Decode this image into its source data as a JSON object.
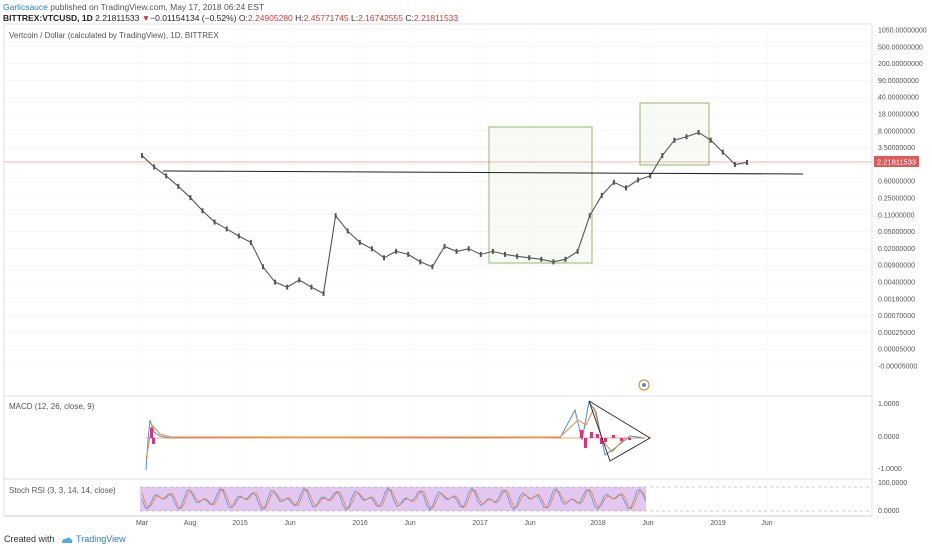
{
  "header": {
    "author": "Garlicsauce",
    "published": "published on TradingView.com, May 17, 2018 06:24 EST",
    "symbol": "BITTREX:VTCUSD, 1D",
    "last": "2.21811533",
    "change_arrow": "▼",
    "change": "−0.01154134 (−0.52%)",
    "open_label": "O:",
    "open": "2.24905280",
    "high_label": "H:",
    "high": "2.45771745",
    "low_label": "L:",
    "low": "2.16742555",
    "close_label": "C:",
    "close": "2.21811533"
  },
  "chart_data": [
    {
      "type": "line",
      "title": "Vertcoin / Dollar (calculated by TradingView), 1D, BITTREX",
      "scale": "log",
      "y_ticks": [
        "1050.00000000",
        "500.00000000",
        "200.00000000",
        "90.00000000",
        "40.00000000",
        "18.00000000",
        "8.00000000",
        "3.50000000",
        "1.50000000",
        "0.60000000",
        "0.25000000",
        "0.11000000",
        "0.05000000",
        "0.02000000",
        "0.00900000",
        "0.00400000",
        "0.00180000",
        "0.00070000",
        "0.00025000",
        "0.00005000",
        "-0.00005000"
      ],
      "x_ticks": [
        "Mar",
        "Aug",
        "2015",
        "Jun",
        "2016",
        "Jun",
        "2017",
        "Jun",
        "2018",
        "Jun",
        "2019",
        "Jun"
      ],
      "last_price_label": "2.21811533",
      "series": [
        {
          "x": [
            "2014-03",
            "2014-04",
            "2014-05",
            "2014-06",
            "2014-07",
            "2014-08",
            "2014-09",
            "2014-10",
            "2014-11",
            "2014-12",
            "2015-01",
            "2015-02",
            "2015-03",
            "2015-04",
            "2015-05",
            "2015-06",
            "2015-07",
            "2015-08",
            "2015-09",
            "2015-10",
            "2015-11",
            "2015-12",
            "2016-01",
            "2016-02",
            "2016-03",
            "2016-04",
            "2016-05",
            "2016-06",
            "2016-07",
            "2016-08",
            "2016-09",
            "2016-10",
            "2016-11",
            "2016-12",
            "2017-01",
            "2017-02",
            "2017-03",
            "2017-04",
            "2017-05",
            "2017-06",
            "2017-07",
            "2017-08",
            "2017-09",
            "2017-10",
            "2017-11",
            "2017-12",
            "2018-01",
            "2018-02",
            "2018-03",
            "2018-04",
            "2018-05"
          ],
          "values": [
            3.0,
            1.8,
            1.2,
            0.75,
            0.45,
            0.25,
            0.15,
            0.11,
            0.08,
            0.06,
            0.02,
            0.01,
            0.008,
            0.011,
            0.008,
            0.006,
            0.2,
            0.1,
            0.06,
            0.045,
            0.03,
            0.04,
            0.035,
            0.025,
            0.02,
            0.05,
            0.04,
            0.045,
            0.035,
            0.04,
            0.035,
            0.032,
            0.03,
            0.028,
            0.025,
            0.028,
            0.04,
            0.2,
            0.5,
            0.9,
            0.7,
            1.0,
            1.2,
            3.0,
            6.0,
            7.0,
            8.5,
            6.0,
            3.5,
            2.0,
            2.2
          ]
        }
      ]
    },
    {
      "type": "line",
      "title": "MACD (12, 26, close, 9)",
      "y_ticks": [
        "1.0000",
        "0.0000",
        "-1.0000"
      ]
    },
    {
      "type": "line",
      "title": "Stoch RSI (3, 3, 14, 14, close)",
      "y_ticks": [
        "100.0000",
        "0.0000"
      ]
    }
  ],
  "footer": {
    "created": "Created with",
    "brand": "TradingView"
  },
  "colors": {
    "candle": "#555555",
    "highlight_box": "#8fbc6a",
    "last_price": "#e05a5a",
    "macd": "#4a8fd6",
    "signal": "#f08a3a",
    "histogram": "#e0307a",
    "stoch_band": "#d8b6ec",
    "stoch_k": "#5a8ed6",
    "stoch_d": "#e8823a"
  }
}
